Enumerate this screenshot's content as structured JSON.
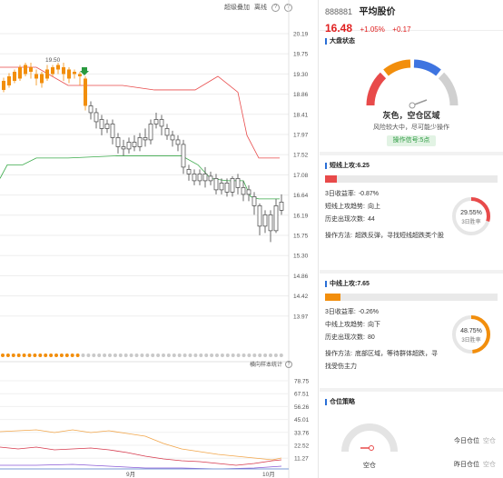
{
  "toolbar": {
    "overlay": "超级叠加",
    "sidebar": "离线"
  },
  "price_axis": [
    "20.19",
    "19.75",
    "19.30",
    "18.86",
    "18.41",
    "17.97",
    "17.52",
    "17.08",
    "16.64",
    "16.19",
    "15.75",
    "15.30",
    "14.86",
    "14.42",
    "13.97"
  ],
  "vol_axis": [
    "78.75",
    "67.51",
    "56.26",
    "45.01",
    "33.76",
    "22.52",
    "11.27"
  ],
  "date_labels": [
    "9月",
    "10月"
  ],
  "peak_label": "19.50",
  "vol_title": "横向样本统计",
  "stock": {
    "code": "888881",
    "name": "平均股价",
    "price": "16.48",
    "pct": "+1.05%",
    "change": "+0.17"
  },
  "market": {
    "title": "大盘状态",
    "status": "灰色，空仓区域",
    "desc": "风险较大中，尽可能少操作",
    "signal": "操作信号:5点"
  },
  "short_term": {
    "title": "短线上攻:6.25",
    "progress": 0.07,
    "return_label": "3日收益率:",
    "return_value": "-0.87%",
    "trend_label": "短线上攻趋势:",
    "trend_value": "向上",
    "count_label": "历史出现次数:",
    "count_value": "44",
    "method_label": "操作方法:",
    "method_value": "超跌反弹，寻找短线超跌类个股",
    "win_pct": "29.55%",
    "win_label": "3日胜率",
    "win_value": 29.55
  },
  "mid_term": {
    "title": "中线上攻:7.65",
    "progress": 0.09,
    "return_label": "3日收益率:",
    "return_value": "-0.26%",
    "trend_label": "中线上攻趋势:",
    "trend_value": "向下",
    "count_label": "历史出现次数:",
    "count_value": "80",
    "method_label": "操作方法:",
    "method_value": "底部区域，等待群体超跌，寻找受伤主力",
    "win_pct": "48.75%",
    "win_label": "3日胜率",
    "win_value": 48.75
  },
  "position": {
    "title": "仓位策略",
    "empty_label": "空仓",
    "today_label": "今日仓位",
    "today_value": "空仓",
    "yesterday_label": "昨日仓位",
    "yesterday_value": "空仓"
  },
  "colors": {
    "up": "#e02020",
    "down": "#2a9a3f",
    "accent": "#2a6fd6",
    "orange": "#f28e0c",
    "red_line": "#e84a4a",
    "green_line": "#3aaa4a"
  }
}
